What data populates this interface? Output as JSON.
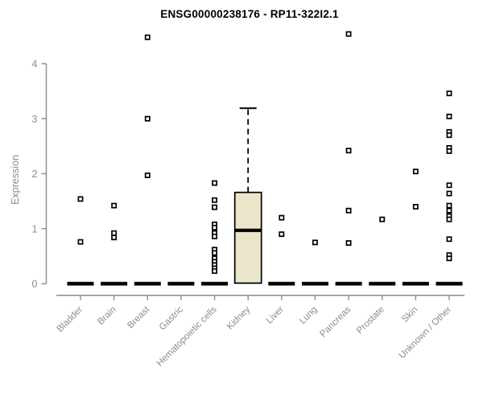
{
  "chart_data": {
    "type": "boxplot",
    "title": "ENSG00000238176 - RP11-322I2.1",
    "ylabel": "Expression",
    "xlabel": "",
    "ylim": [
      0,
      4
    ],
    "yticks": [
      0,
      1,
      2,
      3,
      4
    ],
    "grid": false,
    "legend": "none",
    "categories": [
      "Bladder",
      "Brain",
      "Breast",
      "Gastric",
      "Hematopoietic cells",
      "Kidney",
      "Liver",
      "Lung",
      "Pancreas",
      "Prostate",
      "Skin",
      "Unknown / Other"
    ],
    "groups": [
      {
        "category": "Bladder",
        "collapsed": true,
        "median": 0,
        "points": [
          1.54,
          0.76
        ]
      },
      {
        "category": "Brain",
        "collapsed": true,
        "median": 0,
        "points": [
          1.42,
          0.92,
          0.84
        ]
      },
      {
        "category": "Breast",
        "collapsed": true,
        "median": 0,
        "points": [
          4.48,
          3.0,
          1.97
        ]
      },
      {
        "category": "Gastric",
        "collapsed": true,
        "median": 0,
        "points": []
      },
      {
        "category": "Hematopoietic cells",
        "collapsed": true,
        "median": 0,
        "points": [
          1.83,
          1.52,
          1.39,
          1.08,
          1.02,
          0.92,
          0.86,
          0.62,
          0.56,
          0.46,
          0.4,
          0.34,
          0.28,
          0.23
        ]
      },
      {
        "category": "Kidney",
        "collapsed": false,
        "box": {
          "whisker_low": 0,
          "q1": 0.01,
          "median": 0.97,
          "q3": 1.66,
          "whisker_high": 3.19
        },
        "points": []
      },
      {
        "category": "Liver",
        "collapsed": true,
        "median": 0,
        "points": [
          1.2,
          0.9
        ]
      },
      {
        "category": "Lung",
        "collapsed": true,
        "median": 0,
        "points": [
          0.75
        ]
      },
      {
        "category": "Pancreas",
        "collapsed": true,
        "median": 0,
        "points": [
          4.54,
          2.42,
          1.33,
          0.74
        ]
      },
      {
        "category": "Prostate",
        "collapsed": true,
        "median": 0,
        "points": [
          1.17
        ]
      },
      {
        "category": "Skin",
        "collapsed": true,
        "median": 0,
        "points": [
          2.04,
          1.4
        ]
      },
      {
        "category": "Unknown / Other",
        "collapsed": true,
        "median": 0,
        "points": [
          3.46,
          3.04,
          2.76,
          2.7,
          2.47,
          2.41,
          1.79,
          1.64,
          1.42,
          1.33,
          1.23,
          1.17,
          0.81,
          0.52,
          0.46
        ]
      }
    ],
    "colors": {
      "box_fill": "#ebe6c9",
      "box_stroke": "#000000",
      "median": "#000000",
      "point": "#000000",
      "point_fill": "#ffffff",
      "flat_bar": "#000000",
      "axis": "#8c8c8c",
      "tick_label": "#8c8c8c",
      "title": "#000000",
      "background": "#ffffff"
    }
  }
}
